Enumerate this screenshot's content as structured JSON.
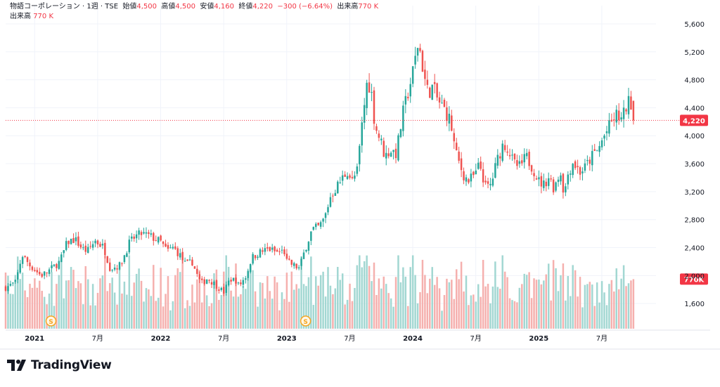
{
  "legend": {
    "name": "物語コーポレーション · 1週 · TSE",
    "open_label": "始値",
    "open_value": "4,500",
    "high_label": "高値",
    "high_value": "4,500",
    "low_label": "安値",
    "low_value": "4,160",
    "close_label": "終値",
    "close_value": "4,220",
    "change": "−300 (−6.64%)",
    "volume_label": "出来高",
    "volume_value": "770 K"
  },
  "volume_pane": {
    "label": "出来高",
    "value": "770 K"
  },
  "badges": {
    "price": "4,220",
    "volume": "770K"
  },
  "brand": {
    "name": "TradingView"
  },
  "colors": {
    "up": "#26a69a",
    "down": "#ef5350",
    "vol_up": "#a2d7d2",
    "vol_down": "#f5b0ae",
    "current": "#f23645",
    "grid": "#f0f3fa",
    "axis_text": "#131722",
    "dividend": "#f5a623"
  },
  "chart_data": {
    "type": "candlestick",
    "title": "物語コーポレーション · 1週 · TSE",
    "price_axis": {
      "range": [
        1240,
        5740
      ],
      "ticks": [
        1600,
        2000,
        2400,
        2800,
        3200,
        3600,
        4000,
        4400,
        4800,
        5200,
        5600
      ],
      "tick_labels": [
        "1,600",
        "2,000",
        "2,400",
        "2,800",
        "3,200",
        "3,600",
        "4,000",
        "4,400",
        "4,800",
        "5,200",
        "5,600"
      ],
      "current_price": 4220
    },
    "time_axis": {
      "range": [
        2020.77,
        2025.93
      ],
      "ticks": [
        {
          "t": 2021.0,
          "label": "2021"
        },
        {
          "t": 2021.5,
          "label": "7月"
        },
        {
          "t": 2022.0,
          "label": "2022"
        },
        {
          "t": 2022.5,
          "label": "7月"
        },
        {
          "t": 2023.0,
          "label": "2023"
        },
        {
          "t": 2023.5,
          "label": "7月"
        },
        {
          "t": 2024.0,
          "label": "2024"
        },
        {
          "t": 2024.5,
          "label": "7月"
        },
        {
          "t": 2025.0,
          "label": "2025"
        },
        {
          "t": 2025.5,
          "label": "7月"
        }
      ]
    },
    "price_anchors": [
      [
        2020.77,
        1830
      ],
      [
        2020.85,
        1900
      ],
      [
        2020.9,
        2300
      ],
      [
        2020.96,
        2150
      ],
      [
        2021.05,
        2000
      ],
      [
        2021.1,
        2050
      ],
      [
        2021.2,
        2200
      ],
      [
        2021.26,
        2480
      ],
      [
        2021.32,
        2520
      ],
      [
        2021.38,
        2380
      ],
      [
        2021.42,
        2350
      ],
      [
        2021.48,
        2500
      ],
      [
        2021.55,
        2400
      ],
      [
        2021.6,
        2100
      ],
      [
        2021.68,
        2150
      ],
      [
        2021.75,
        2460
      ],
      [
        2021.8,
        2560
      ],
      [
        2021.85,
        2600
      ],
      [
        2021.92,
        2560
      ],
      [
        2022.0,
        2480
      ],
      [
        2022.05,
        2350
      ],
      [
        2022.1,
        2400
      ],
      [
        2022.15,
        2300
      ],
      [
        2022.2,
        2150
      ],
      [
        2022.25,
        2200
      ],
      [
        2022.28,
        2050
      ],
      [
        2022.32,
        1880
      ],
      [
        2022.37,
        1960
      ],
      [
        2022.43,
        1880
      ],
      [
        2022.5,
        1760
      ],
      [
        2022.55,
        1950
      ],
      [
        2022.6,
        1930
      ],
      [
        2022.62,
        1850
      ],
      [
        2022.68,
        2000
      ],
      [
        2022.72,
        2250
      ],
      [
        2022.78,
        2330
      ],
      [
        2022.86,
        2380
      ],
      [
        2022.92,
        2330
      ],
      [
        2022.98,
        2350
      ],
      [
        2023.0,
        2200
      ],
      [
        2023.05,
        2150
      ],
      [
        2023.1,
        2100
      ],
      [
        2023.15,
        2400
      ],
      [
        2023.2,
        2650
      ],
      [
        2023.26,
        2700
      ],
      [
        2023.3,
        2820
      ],
      [
        2023.35,
        3150
      ],
      [
        2023.42,
        3330
      ],
      [
        2023.48,
        3500
      ],
      [
        2023.52,
        3350
      ],
      [
        2023.56,
        3500
      ],
      [
        2023.6,
        4200
      ],
      [
        2023.64,
        4800
      ],
      [
        2023.67,
        4650
      ],
      [
        2023.7,
        4150
      ],
      [
        2023.75,
        3900
      ],
      [
        2023.78,
        3700
      ],
      [
        2023.82,
        3800
      ],
      [
        2023.87,
        3750
      ],
      [
        2023.92,
        4300
      ],
      [
        2024.0,
        4900
      ],
      [
        2024.04,
        5300
      ],
      [
        2024.06,
        5200
      ],
      [
        2024.09,
        4850
      ],
      [
        2024.12,
        4620
      ],
      [
        2024.16,
        4700
      ],
      [
        2024.2,
        4500
      ],
      [
        2024.26,
        4350
      ],
      [
        2024.3,
        4200
      ],
      [
        2024.34,
        3750
      ],
      [
        2024.4,
        3450
      ],
      [
        2024.44,
        3350
      ],
      [
        2024.5,
        3450
      ],
      [
        2024.53,
        3600
      ],
      [
        2024.58,
        3250
      ],
      [
        2024.62,
        3300
      ],
      [
        2024.67,
        3650
      ],
      [
        2024.72,
        3900
      ],
      [
        2024.76,
        3800
      ],
      [
        2024.8,
        3600
      ],
      [
        2024.85,
        3550
      ],
      [
        2024.9,
        3700
      ],
      [
        2024.95,
        3550
      ],
      [
        2025.0,
        3350
      ],
      [
        2025.04,
        3300
      ],
      [
        2025.08,
        3420
      ],
      [
        2025.12,
        3250
      ],
      [
        2025.15,
        3400
      ],
      [
        2025.18,
        3480
      ],
      [
        2025.2,
        3130
      ],
      [
        2025.23,
        3450
      ],
      [
        2025.27,
        3620
      ],
      [
        2025.33,
        3480
      ],
      [
        2025.37,
        3550
      ],
      [
        2025.42,
        3700
      ],
      [
        2025.47,
        3800
      ],
      [
        2025.52,
        4000
      ],
      [
        2025.58,
        4200
      ],
      [
        2025.62,
        4300
      ],
      [
        2025.66,
        4220
      ],
      [
        2025.7,
        4460
      ],
      [
        2025.73,
        4490
      ],
      [
        2025.76,
        4220
      ]
    ],
    "volume_axis": {
      "max": 1200000,
      "current": 770000
    },
    "dividend_markers": [
      {
        "t": 2021.13,
        "label": "S"
      },
      {
        "t": 2023.15,
        "label": "S"
      }
    ]
  }
}
